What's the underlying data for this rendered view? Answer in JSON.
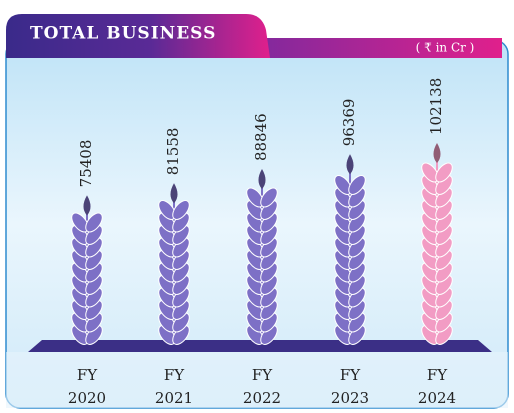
{
  "chart_data": {
    "type": "bar",
    "title": "TOTAL BUSINESS",
    "unit": "( ₹ in Cr )",
    "categories": [
      "FY 2020",
      "FY 2021",
      "FY 2022",
      "FY 2023",
      "FY 2024"
    ],
    "values": [
      75408,
      81558,
      88846,
      96369,
      102138
    ],
    "colors": [
      "#7d70c6",
      "#7d70c6",
      "#7d70c6",
      "#7d70c6",
      "#f29cc4"
    ]
  }
}
